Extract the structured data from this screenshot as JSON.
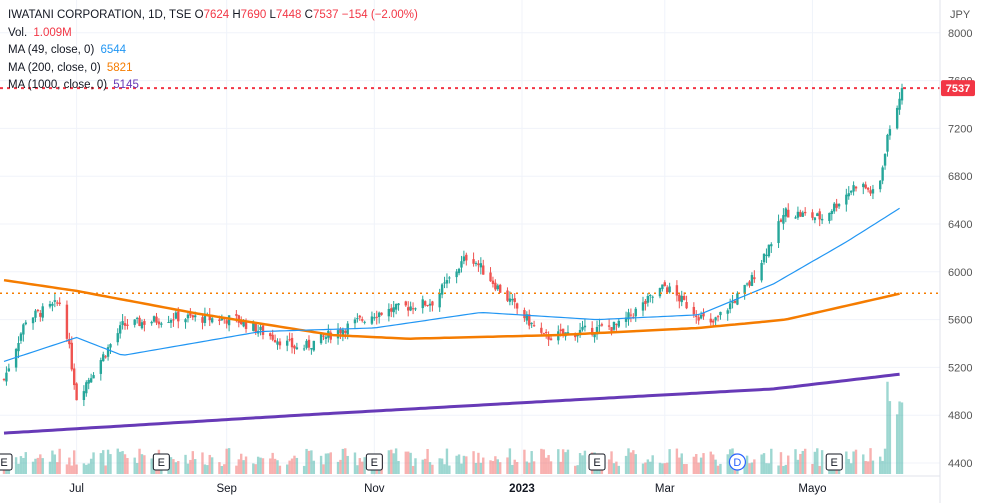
{
  "header": {
    "symbol": "IWATANI CORPORATION",
    "interval": "1D",
    "exchange": "TSE",
    "open_label": "O",
    "open": "7624",
    "high_label": "H",
    "high": "7690",
    "low_label": "L",
    "low": "7448",
    "close_label": "C",
    "close": "7537",
    "change": "−154 (−2.00%)"
  },
  "indicators": {
    "volume_label": "Vol.",
    "volume_value": "1.009M",
    "ma49_label": "MA (49, close, 0)",
    "ma49_value": "6544",
    "ma200_label": "MA (200, close, 0)",
    "ma200_value": "5821",
    "ma1000_label": "MA (1000, close, 0)",
    "ma1000_value": "5145"
  },
  "colors": {
    "up": "#26a69a",
    "down": "#ef5350",
    "ma49": "#2196f3",
    "ma200": "#f57c00",
    "ma1000": "#673ab7",
    "last_price": "#f23645",
    "grid": "#f0f3fa",
    "text": "#131722",
    "axis_text": "#555555"
  },
  "chart_data": {
    "type": "candlestick",
    "currency": "JPY",
    "ylim": [
      4300,
      8200
    ],
    "y_ticks": [
      4400,
      4800,
      5200,
      5600,
      6000,
      6400,
      6800,
      7200,
      7600,
      8000
    ],
    "x_ticks": [
      "Jul",
      "Sep",
      "Nov",
      "2023",
      "Mar",
      "Mayo"
    ],
    "last_price": 7537,
    "horizontal_line": 5820,
    "event_markers": [
      "E",
      "E",
      "E",
      "E",
      "D",
      "E"
    ],
    "price_key_points": [
      {
        "date": "2022-06-01",
        "close": 5100
      },
      {
        "date": "2022-06-10",
        "close": 5600
      },
      {
        "date": "2022-06-25",
        "close": 5750
      },
      {
        "date": "2022-07-01",
        "close": 4950
      },
      {
        "date": "2022-07-20",
        "close": 5550
      },
      {
        "date": "2022-08-10",
        "close": 5620
      },
      {
        "date": "2022-09-05",
        "close": 5600
      },
      {
        "date": "2022-10-01",
        "close": 5350
      },
      {
        "date": "2022-11-01",
        "close": 5650
      },
      {
        "date": "2022-11-25",
        "close": 5750
      },
      {
        "date": "2022-12-10",
        "close": 6150
      },
      {
        "date": "2022-12-25",
        "close": 5800
      },
      {
        "date": "2023-01-10",
        "close": 5450
      },
      {
        "date": "2023-02-10",
        "close": 5550
      },
      {
        "date": "2023-03-01",
        "close": 5880
      },
      {
        "date": "2023-03-20",
        "close": 5550
      },
      {
        "date": "2023-04-05",
        "close": 5900
      },
      {
        "date": "2023-04-20",
        "close": 6500
      },
      {
        "date": "2023-05-05",
        "close": 6450
      },
      {
        "date": "2023-05-20",
        "close": 6750
      },
      {
        "date": "2023-05-28",
        "close": 6620
      },
      {
        "date": "2023-06-01",
        "close": 7150
      },
      {
        "date": "2023-06-07",
        "close": 7537
      }
    ],
    "ma49_key_points": [
      {
        "date": "2022-06-01",
        "value": 5250
      },
      {
        "date": "2022-07-01",
        "value": 5450
      },
      {
        "date": "2022-07-20",
        "value": 5300
      },
      {
        "date": "2022-09-15",
        "value": 5500
      },
      {
        "date": "2022-11-01",
        "value": 5530
      },
      {
        "date": "2022-12-15",
        "value": 5660
      },
      {
        "date": "2023-02-01",
        "value": 5600
      },
      {
        "date": "2023-03-15",
        "value": 5640
      },
      {
        "date": "2023-04-15",
        "value": 5900
      },
      {
        "date": "2023-05-15",
        "value": 6250
      },
      {
        "date": "2023-06-07",
        "value": 6544
      }
    ],
    "ma200_key_points": [
      {
        "date": "2022-06-01",
        "value": 5930
      },
      {
        "date": "2022-07-01",
        "value": 5840
      },
      {
        "date": "2022-08-20",
        "value": 5650
      },
      {
        "date": "2022-10-15",
        "value": 5470
      },
      {
        "date": "2022-11-15",
        "value": 5440
      },
      {
        "date": "2023-01-15",
        "value": 5470
      },
      {
        "date": "2023-03-15",
        "value": 5530
      },
      {
        "date": "2023-04-20",
        "value": 5600
      },
      {
        "date": "2023-06-07",
        "value": 5821
      }
    ],
    "ma1000_key_points": [
      {
        "date": "2022-06-01",
        "value": 4650
      },
      {
        "date": "2022-10-01",
        "value": 4800
      },
      {
        "date": "2023-01-15",
        "value": 4920
      },
      {
        "date": "2023-04-15",
        "value": 5020
      },
      {
        "date": "2023-06-07",
        "value": 5145
      }
    ]
  }
}
